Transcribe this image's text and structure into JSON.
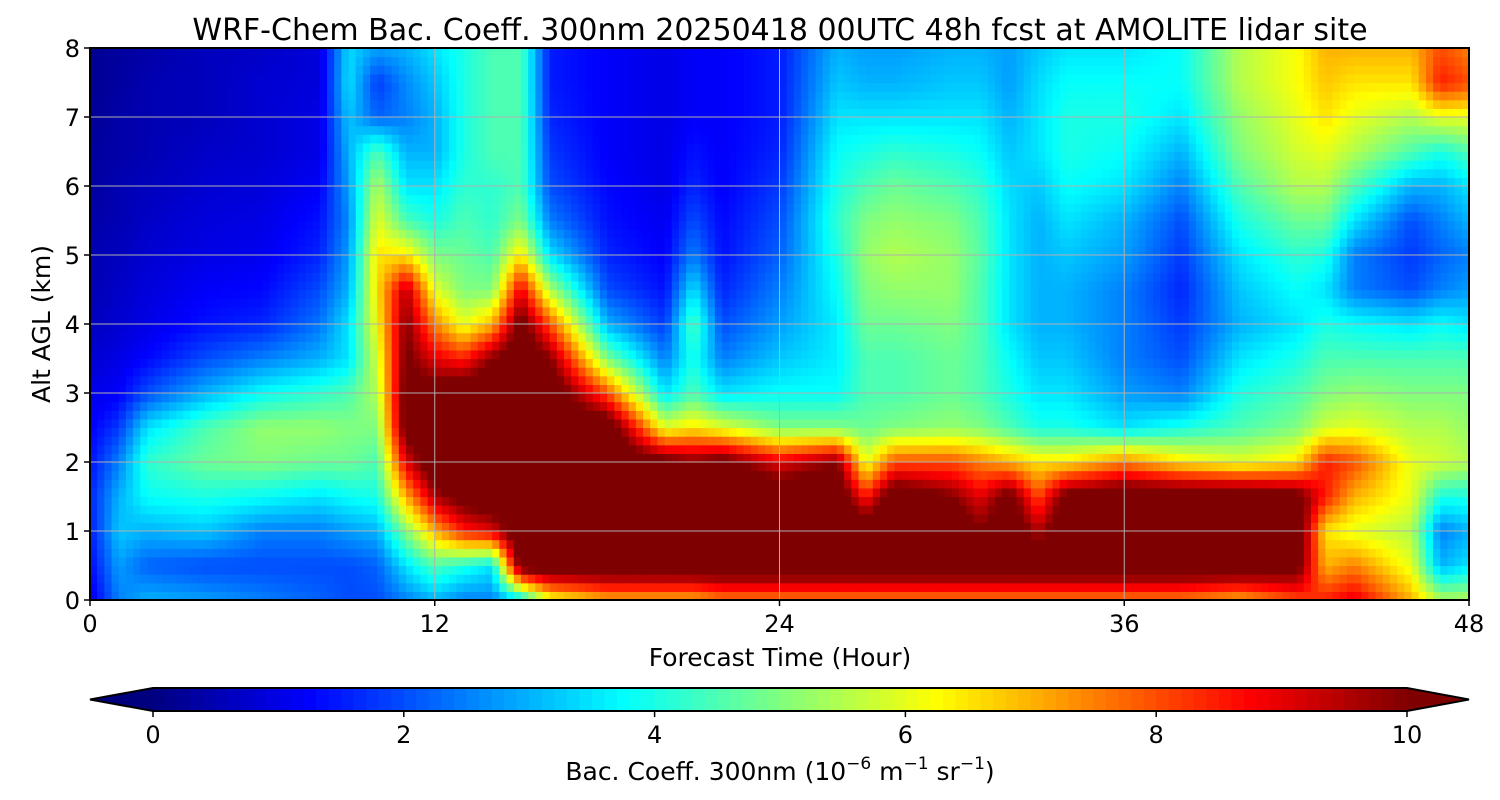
{
  "chart_data": {
    "type": "heatmap",
    "title": "WRF-Chem Bac. Coeff. 300nm  20250418 00UTC 48h fcst at AMOLITE lidar site",
    "xlabel": "Forecast Time (Hour)",
    "ylabel": "Alt AGL (km)",
    "xlim": [
      0,
      48
    ],
    "ylim": [
      0,
      8
    ],
    "xticks": [
      "0",
      "12",
      "24",
      "36",
      "48"
    ],
    "yticks": [
      "0",
      "1",
      "2",
      "3",
      "4",
      "5",
      "6",
      "7",
      "8"
    ],
    "grid": true,
    "colorbar": {
      "label_prefix": "Bac. Coeff. 300nm  (10",
      "label_exp1": "−6",
      "label_mid": " m",
      "label_exp2": "−1",
      "label_mid2": " sr",
      "label_exp3": "−1",
      "label_suffix": ")",
      "range": [
        0,
        10
      ],
      "ticks": [
        "0",
        "2",
        "4",
        "6",
        "8",
        "10"
      ],
      "extend": "both",
      "colormap": "jet",
      "low_color": "#00007f",
      "high_color": "#7f0000"
    },
    "times": [
      0,
      1,
      2,
      4,
      6,
      8,
      9,
      10,
      11,
      12,
      13,
      14,
      15,
      16,
      18,
      20,
      21,
      22,
      24,
      26,
      27,
      28,
      30,
      31,
      32,
      33,
      34,
      36,
      38,
      40,
      42,
      43,
      44,
      46,
      47,
      48
    ],
    "altitudes": [
      0,
      0.5,
      1,
      1.5,
      2,
      2.5,
      3,
      3.5,
      4,
      4.5,
      5,
      5.5,
      6,
      6.5,
      7,
      7.5,
      8
    ],
    "values": [
      [
        1.0,
        1.3,
        1.5,
        1.6,
        1.4,
        1.2,
        1.0,
        0.8,
        0.6,
        0.5,
        0.5,
        0.4,
        0.3,
        0.3,
        0.2,
        0.2,
        0.2
      ],
      [
        2.5,
        2.8,
        3.2,
        3.0,
        2.5,
        1.8,
        1.2,
        1.0,
        0.8,
        0.7,
        0.6,
        0.5,
        0.5,
        0.4,
        0.4,
        0.3,
        0.3
      ],
      [
        3.0,
        2.2,
        3.0,
        3.8,
        4.2,
        3.5,
        2.0,
        1.3,
        1.0,
        0.9,
        0.8,
        0.7,
        0.6,
        0.5,
        0.5,
        0.5,
        0.4
      ],
      [
        2.8,
        2.0,
        3.2,
        4.0,
        4.8,
        4.5,
        3.0,
        2.0,
        1.4,
        1.2,
        1.0,
        0.9,
        0.8,
        0.7,
        0.6,
        0.6,
        0.6
      ],
      [
        2.5,
        2.0,
        2.5,
        3.8,
        5.0,
        5.2,
        3.8,
        2.5,
        1.6,
        1.3,
        1.1,
        1.0,
        0.9,
        0.8,
        0.8,
        0.8,
        0.7
      ],
      [
        2.2,
        2.0,
        2.5,
        3.5,
        4.8,
        5.2,
        4.2,
        3.0,
        2.4,
        2.0,
        1.6,
        1.4,
        1.2,
        1.0,
        1.0,
        0.9,
        0.9
      ],
      [
        2.0,
        2.0,
        2.8,
        3.8,
        4.8,
        5.0,
        4.5,
        3.5,
        3.5,
        3.0,
        2.8,
        2.6,
        2.8,
        3.0,
        3.2,
        3.5,
        3.4
      ],
      [
        2.0,
        2.2,
        3.0,
        4.0,
        4.5,
        5.0,
        5.5,
        5.8,
        6.2,
        6.5,
        6.5,
        6.0,
        5.5,
        4.5,
        2.2,
        1.8,
        2.8
      ],
      [
        2.5,
        3.5,
        5.0,
        7.0,
        9.0,
        10.5,
        10.5,
        10.2,
        10.0,
        9.5,
        6.5,
        4.5,
        3.5,
        3.0,
        2.5,
        2.6,
        3.0
      ],
      [
        3.0,
        4.5,
        7.0,
        9.5,
        11.0,
        11.0,
        10.5,
        9.0,
        7.5,
        6.0,
        5.0,
        4.0,
        3.5,
        3.0,
        3.0,
        3.2,
        3.5
      ],
      [
        2.5,
        4.0,
        8.5,
        10.5,
        11.0,
        11.0,
        11.0,
        8.5,
        6.0,
        5.0,
        4.8,
        4.5,
        4.2,
        4.0,
        4.0,
        4.0,
        4.0
      ],
      [
        2.5,
        3.5,
        9.0,
        11.0,
        11.0,
        11.0,
        11.0,
        10.0,
        7.0,
        5.0,
        4.5,
        4.2,
        4.2,
        4.5,
        4.5,
        4.5,
        4.5
      ],
      [
        3.5,
        10.5,
        11.0,
        11.0,
        11.0,
        11.0,
        11.0,
        11.0,
        10.5,
        9.0,
        6.5,
        5.0,
        4.5,
        4.5,
        4.5,
        4.5,
        4.5
      ],
      [
        6.0,
        11.0,
        11.0,
        11.0,
        11.0,
        11.0,
        11.0,
        10.0,
        8.0,
        5.5,
        3.5,
        2.5,
        2.0,
        1.8,
        1.6,
        1.5,
        1.5
      ],
      [
        7.0,
        11.0,
        11.0,
        11.0,
        11.0,
        11.0,
        8.0,
        5.0,
        3.0,
        2.0,
        1.6,
        1.4,
        1.3,
        1.2,
        1.2,
        1.2,
        1.2
      ],
      [
        7.0,
        11.0,
        11.0,
        11.0,
        10.5,
        6.0,
        3.5,
        2.5,
        1.8,
        1.4,
        1.2,
        1.1,
        1.0,
        1.0,
        1.0,
        1.0,
        1.0
      ],
      [
        7.0,
        11.0,
        11.0,
        11.0,
        10.0,
        6.5,
        4.5,
        4.0,
        4.5,
        3.5,
        2.5,
        2.0,
        1.6,
        1.4,
        1.2,
        1.2,
        1.2
      ],
      [
        7.5,
        11.0,
        11.0,
        11.0,
        10.5,
        6.0,
        3.5,
        2.5,
        2.0,
        1.6,
        1.4,
        1.3,
        1.2,
        1.2,
        1.2,
        1.2,
        1.2
      ],
      [
        7.5,
        11.0,
        11.0,
        11.0,
        9.0,
        5.0,
        3.8,
        3.2,
        2.8,
        2.5,
        2.2,
        2.0,
        1.8,
        1.6,
        1.5,
        1.5,
        1.5
      ],
      [
        7.5,
        11.0,
        11.0,
        11.0,
        10.0,
        5.0,
        3.8,
        3.6,
        3.6,
        3.8,
        4.0,
        4.2,
        4.0,
        3.8,
        3.5,
        3.2,
        3.0
      ],
      [
        7.5,
        11.0,
        11.0,
        8.5,
        6.0,
        4.8,
        4.5,
        4.5,
        4.8,
        5.0,
        5.2,
        5.0,
        4.5,
        4.0,
        3.5,
        3.0,
        2.8
      ],
      [
        7.5,
        11.0,
        11.0,
        11.0,
        8.0,
        5.0,
        4.5,
        4.5,
        4.8,
        5.2,
        5.5,
        5.2,
        4.8,
        4.2,
        3.5,
        3.0,
        2.8
      ],
      [
        7.5,
        11.0,
        11.0,
        10.0,
        8.0,
        5.2,
        4.8,
        4.8,
        5.0,
        5.2,
        5.2,
        5.0,
        4.5,
        4.0,
        3.5,
        3.2,
        3.0
      ],
      [
        7.5,
        11.0,
        10.0,
        9.0,
        7.5,
        5.0,
        4.5,
        4.5,
        4.5,
        4.5,
        4.6,
        4.5,
        4.2,
        3.8,
        3.5,
        3.2,
        3.0
      ],
      [
        7.5,
        11.0,
        11.0,
        10.5,
        7.0,
        4.5,
        4.0,
        3.8,
        3.5,
        3.5,
        3.5,
        3.5,
        3.4,
        3.2,
        3.0,
        2.8,
        2.8
      ],
      [
        7.5,
        11.0,
        9.5,
        8.0,
        6.5,
        4.0,
        3.5,
        3.2,
        3.0,
        3.0,
        3.0,
        3.0,
        3.2,
        3.5,
        3.5,
        3.4,
        3.2
      ],
      [
        7.5,
        11.0,
        11.0,
        10.5,
        6.5,
        4.0,
        3.5,
        3.2,
        3.0,
        3.0,
        3.2,
        3.5,
        3.8,
        4.0,
        4.0,
        3.8,
        3.5
      ],
      [
        7.5,
        11.0,
        11.0,
        11.0,
        7.5,
        3.5,
        2.8,
        2.5,
        2.5,
        2.5,
        2.8,
        3.0,
        3.5,
        3.8,
        4.0,
        3.8,
        3.5
      ],
      [
        7.5,
        11.0,
        11.0,
        11.0,
        6.5,
        4.0,
        2.5,
        2.0,
        1.8,
        1.6,
        1.8,
        2.0,
        2.5,
        3.0,
        3.5,
        3.8,
        3.8
      ],
      [
        7.0,
        11.0,
        11.0,
        11.0,
        6.0,
        4.5,
        4.0,
        3.5,
        3.0,
        3.2,
        3.5,
        4.0,
        4.5,
        5.0,
        5.2,
        5.5,
        5.5
      ],
      [
        8.0,
        10.5,
        11.0,
        10.5,
        6.5,
        5.0,
        4.5,
        4.0,
        3.5,
        3.8,
        4.2,
        4.8,
        5.5,
        5.8,
        6.0,
        6.2,
        6.2
      ],
      [
        8.5,
        7.0,
        6.5,
        8.5,
        8.5,
        5.8,
        5.0,
        4.5,
        4.0,
        3.5,
        4.0,
        4.8,
        5.5,
        6.0,
        6.5,
        6.8,
        7.0
      ],
      [
        9.0,
        7.5,
        6.0,
        7.0,
        8.0,
        6.0,
        5.2,
        4.5,
        3.8,
        2.5,
        2.5,
        3.5,
        4.5,
        5.5,
        6.0,
        6.5,
        7.0
      ],
      [
        7.0,
        6.0,
        5.5,
        6.0,
        6.0,
        5.5,
        5.0,
        4.5,
        3.5,
        2.0,
        1.8,
        2.0,
        3.0,
        4.5,
        5.5,
        6.5,
        7.0
      ],
      [
        5.5,
        3.0,
        2.5,
        4.0,
        5.8,
        5.5,
        5.0,
        4.5,
        3.8,
        2.5,
        2.2,
        2.5,
        3.0,
        4.0,
        6.0,
        8.5,
        8.0
      ],
      [
        5.5,
        3.5,
        3.0,
        4.0,
        5.5,
        5.2,
        5.0,
        4.5,
        3.5,
        2.8,
        2.5,
        3.0,
        3.5,
        4.5,
        6.0,
        8.0,
        7.5
      ]
    ]
  }
}
